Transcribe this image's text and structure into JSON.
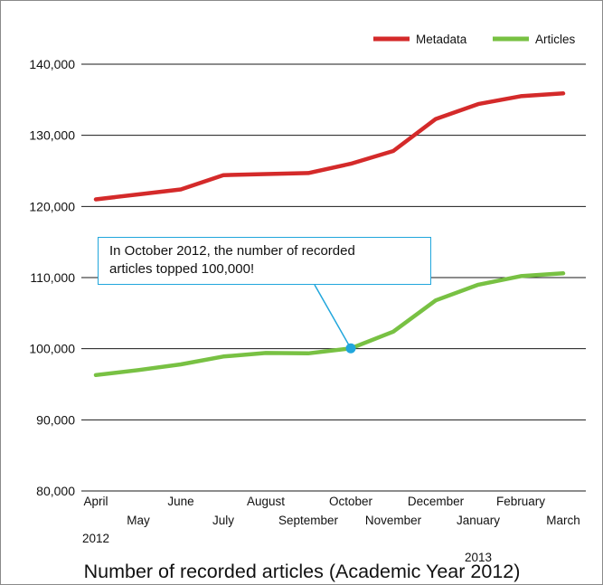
{
  "chart_data": {
    "type": "line",
    "title": "Number of recorded articles (Academic Year 2012)",
    "xlabel": "",
    "ylabel": "",
    "categories": [
      "April",
      "May",
      "June",
      "July",
      "August",
      "September",
      "October",
      "November",
      "December",
      "January",
      "February",
      "March"
    ],
    "year_labels": {
      "April": "2012",
      "January": "2013"
    },
    "ylim": [
      80000,
      140000
    ],
    "yticks": [
      80000,
      90000,
      100000,
      110000,
      120000,
      130000,
      140000
    ],
    "ytick_labels": [
      "80,000",
      "90,000",
      "100,000",
      "110,000",
      "120,000",
      "130,000",
      "140,000"
    ],
    "grid": true,
    "legend_position": "top-right",
    "series": [
      {
        "name": "Metadata",
        "color": "#d42a2a",
        "values": [
          121000,
          121700,
          122400,
          124400,
          124550,
          124700,
          126000,
          127800,
          132300,
          134400,
          135500,
          135900
        ]
      },
      {
        "name": "Articles",
        "color": "#78c143",
        "values": [
          96300,
          97000,
          97800,
          98900,
          99400,
          99350,
          100050,
          102400,
          106800,
          109000,
          110200,
          110600
        ]
      }
    ],
    "annotation": {
      "lines": [
        "In October 2012, the number of recorded",
        "articles topped 100,000!"
      ],
      "category": "October",
      "series": "Articles",
      "value": 100050,
      "color": "#21a6dc"
    }
  }
}
